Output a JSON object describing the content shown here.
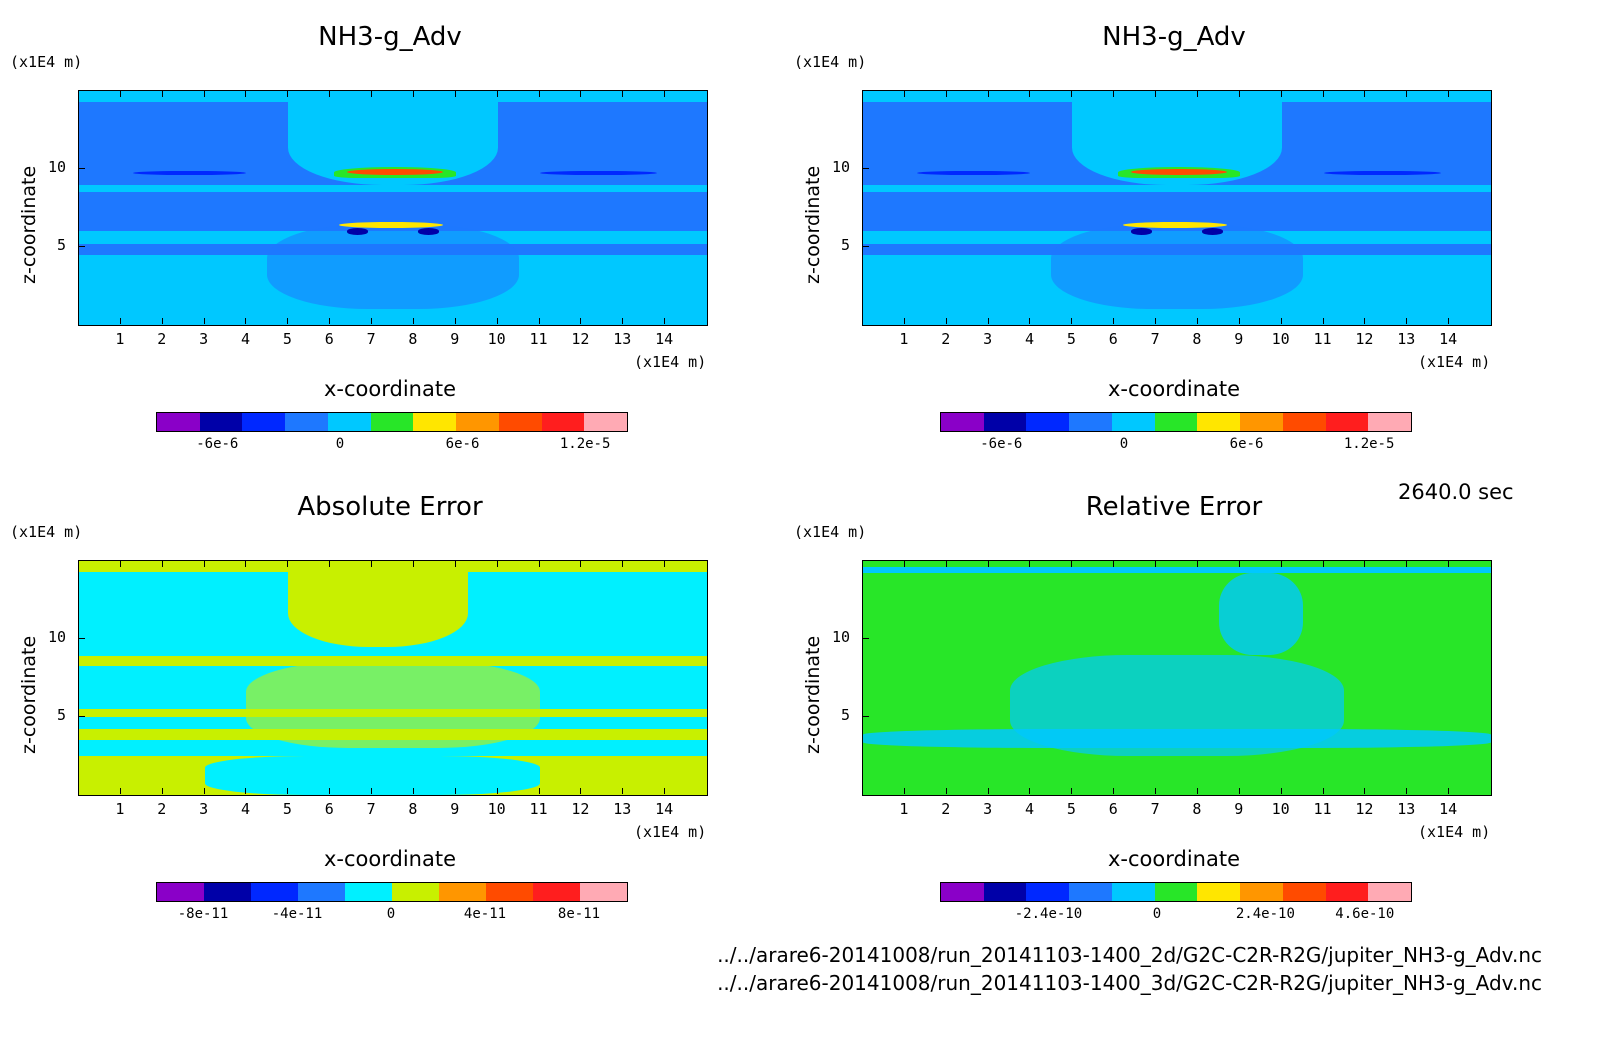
{
  "time_label": "2640.0 sec",
  "footer": {
    "file1": "../../arare6-20141008/run_20141103-1400_2d/G2C-C2R-R2G/jupiter_NH3-g_Adv.nc",
    "file2": "../../arare6-20141008/run_20141103-1400_3d/G2C-C2R-R2G/jupiter_NH3-g_Adv.nc"
  },
  "chart_data": [
    {
      "type": "heatmap",
      "title": "NH3-g_Adv",
      "xlabel": "x-coordinate",
      "ylabel": "z-coordinate",
      "x_unit": "(x1E4 m)",
      "y_unit": "(x1E4 m)",
      "x_ticks": [
        "1",
        "2",
        "3",
        "4",
        "5",
        "6",
        "7",
        "8",
        "9",
        "10",
        "11",
        "12",
        "13",
        "14"
      ],
      "y_ticks": [
        "5",
        "10"
      ],
      "xlim": [
        0,
        15
      ],
      "ylim": [
        0,
        15
      ],
      "colorbar": {
        "colors": [
          "#8a00c8",
          "#0000a8",
          "#0028ff",
          "#1e78ff",
          "#00c8ff",
          "#28e628",
          "#ffe600",
          "#ff9600",
          "#ff4b00",
          "#ff1e1e",
          "#ffaab4"
        ],
        "labels": [
          "-6e-6",
          "0",
          "6e-6",
          "1.2e-5"
        ],
        "label_values": [
          -6e-06,
          0,
          6e-06,
          1.2e-05
        ],
        "range": [
          -9e-06,
          1.4e-05
        ]
      },
      "background": "#1e78ff"
    },
    {
      "type": "heatmap",
      "title": "NH3-g_Adv",
      "xlabel": "x-coordinate",
      "ylabel": "z-coordinate",
      "x_unit": "(x1E4 m)",
      "y_unit": "(x1E4 m)",
      "x_ticks": [
        "1",
        "2",
        "3",
        "4",
        "5",
        "6",
        "7",
        "8",
        "9",
        "10",
        "11",
        "12",
        "13",
        "14"
      ],
      "y_ticks": [
        "5",
        "10"
      ],
      "xlim": [
        0,
        15
      ],
      "ylim": [
        0,
        15
      ],
      "colorbar": {
        "colors": [
          "#8a00c8",
          "#0000a8",
          "#0028ff",
          "#1e78ff",
          "#00c8ff",
          "#28e628",
          "#ffe600",
          "#ff9600",
          "#ff4b00",
          "#ff1e1e",
          "#ffaab4"
        ],
        "labels": [
          "-6e-6",
          "0",
          "6e-6",
          "1.2e-5"
        ],
        "label_values": [
          -6e-06,
          0,
          6e-06,
          1.2e-05
        ],
        "range": [
          -9e-06,
          1.4e-05
        ]
      },
      "background": "#1e78ff"
    },
    {
      "type": "heatmap",
      "title": "Absolute Error",
      "xlabel": "x-coordinate",
      "ylabel": "z-coordinate",
      "x_unit": "(x1E4 m)",
      "y_unit": "(x1E4 m)",
      "x_ticks": [
        "1",
        "2",
        "3",
        "4",
        "5",
        "6",
        "7",
        "8",
        "9",
        "10",
        "11",
        "12",
        "13",
        "14"
      ],
      "y_ticks": [
        "5",
        "10"
      ],
      "xlim": [
        0,
        15
      ],
      "ylim": [
        0,
        15
      ],
      "colorbar": {
        "colors": [
          "#8a00c8",
          "#0000a8",
          "#0028ff",
          "#1e78ff",
          "#00f0ff",
          "#c8f000",
          "#ff9600",
          "#ff4b00",
          "#ff1e1e",
          "#ffaab4"
        ],
        "labels": [
          "-8e-11",
          "-4e-11",
          "0",
          "4e-11",
          "8e-11"
        ],
        "label_values": [
          -8e-11,
          -4e-11,
          0,
          4e-11,
          8e-11
        ],
        "range": [
          -1e-10,
          1e-10
        ]
      },
      "background": "#00f0ff"
    },
    {
      "type": "heatmap",
      "title": "Relative Error",
      "xlabel": "x-coordinate",
      "ylabel": "z-coordinate",
      "x_unit": "(x1E4 m)",
      "y_unit": "(x1E4 m)",
      "x_ticks": [
        "1",
        "2",
        "3",
        "4",
        "5",
        "6",
        "7",
        "8",
        "9",
        "10",
        "11",
        "12",
        "13",
        "14"
      ],
      "y_ticks": [
        "5",
        "10"
      ],
      "xlim": [
        0,
        15
      ],
      "ylim": [
        0,
        15
      ],
      "colorbar": {
        "colors": [
          "#8a00c8",
          "#0000a8",
          "#0028ff",
          "#1e78ff",
          "#00c8ff",
          "#28e628",
          "#ffe600",
          "#ff9600",
          "#ff4b00",
          "#ff1e1e",
          "#ffaab4"
        ],
        "labels": [
          "-2.4e-10",
          "0",
          "2.4e-10",
          "4.6e-10"
        ],
        "label_values": [
          -2.4e-10,
          0,
          2.4e-10,
          4.6e-10
        ],
        "range": [
          -4.8e-10,
          5.6e-10
        ]
      },
      "background": "#28e628"
    }
  ]
}
